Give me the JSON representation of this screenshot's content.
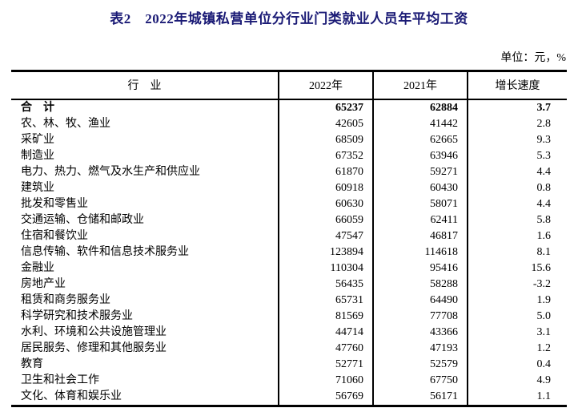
{
  "title": "表2　2022年城镇私营单位分行业门类就业人员年平均工资",
  "unit_label": "单位：元，%",
  "colors": {
    "title_text": "#1a1a75",
    "body_text": "#000000",
    "border": "#000000",
    "background": "#ffffff"
  },
  "table": {
    "columns": [
      "行　业",
      "2022年",
      "2021年",
      "增长速度"
    ],
    "rows": [
      {
        "industry": "合　计",
        "y2022": "65237",
        "y2021": "62884",
        "growth": "3.7",
        "emphasis": true
      },
      {
        "industry": "农、林、牧、渔业",
        "y2022": "42605",
        "y2021": "41442",
        "growth": "2.8",
        "emphasis": false
      },
      {
        "industry": "采矿业",
        "y2022": "68509",
        "y2021": "62665",
        "growth": "9.3",
        "emphasis": false
      },
      {
        "industry": "制造业",
        "y2022": "67352",
        "y2021": "63946",
        "growth": "5.3",
        "emphasis": false
      },
      {
        "industry": "电力、热力、燃气及水生产和供应业",
        "y2022": "61870",
        "y2021": "59271",
        "growth": "4.4",
        "emphasis": false
      },
      {
        "industry": "建筑业",
        "y2022": "60918",
        "y2021": "60430",
        "growth": "0.8",
        "emphasis": false
      },
      {
        "industry": "批发和零售业",
        "y2022": "60630",
        "y2021": "58071",
        "growth": "4.4",
        "emphasis": false
      },
      {
        "industry": "交通运输、仓储和邮政业",
        "y2022": "66059",
        "y2021": "62411",
        "growth": "5.8",
        "emphasis": false
      },
      {
        "industry": "住宿和餐饮业",
        "y2022": "47547",
        "y2021": "46817",
        "growth": "1.6",
        "emphasis": false
      },
      {
        "industry": "信息传输、软件和信息技术服务业",
        "y2022": "123894",
        "y2021": "114618",
        "growth": "8.1",
        "emphasis": false
      },
      {
        "industry": "金融业",
        "y2022": "110304",
        "y2021": "95416",
        "growth": "15.6",
        "emphasis": false
      },
      {
        "industry": "房地产业",
        "y2022": "56435",
        "y2021": "58288",
        "growth": "-3.2",
        "emphasis": false
      },
      {
        "industry": "租赁和商务服务业",
        "y2022": "65731",
        "y2021": "64490",
        "growth": "1.9",
        "emphasis": false
      },
      {
        "industry": "科学研究和技术服务业",
        "y2022": "81569",
        "y2021": "77708",
        "growth": "5.0",
        "emphasis": false
      },
      {
        "industry": "水利、环境和公共设施管理业",
        "y2022": "44714",
        "y2021": "43366",
        "growth": "3.1",
        "emphasis": false
      },
      {
        "industry": "居民服务、修理和其他服务业",
        "y2022": "47760",
        "y2021": "47193",
        "growth": "1.2",
        "emphasis": false
      },
      {
        "industry": "教育",
        "y2022": "52771",
        "y2021": "52579",
        "growth": "0.4",
        "emphasis": false
      },
      {
        "industry": "卫生和社会工作",
        "y2022": "71060",
        "y2021": "67750",
        "growth": "4.9",
        "emphasis": false
      },
      {
        "industry": "文化、体育和娱乐业",
        "y2022": "56769",
        "y2021": "56171",
        "growth": "1.1",
        "emphasis": false
      }
    ]
  }
}
